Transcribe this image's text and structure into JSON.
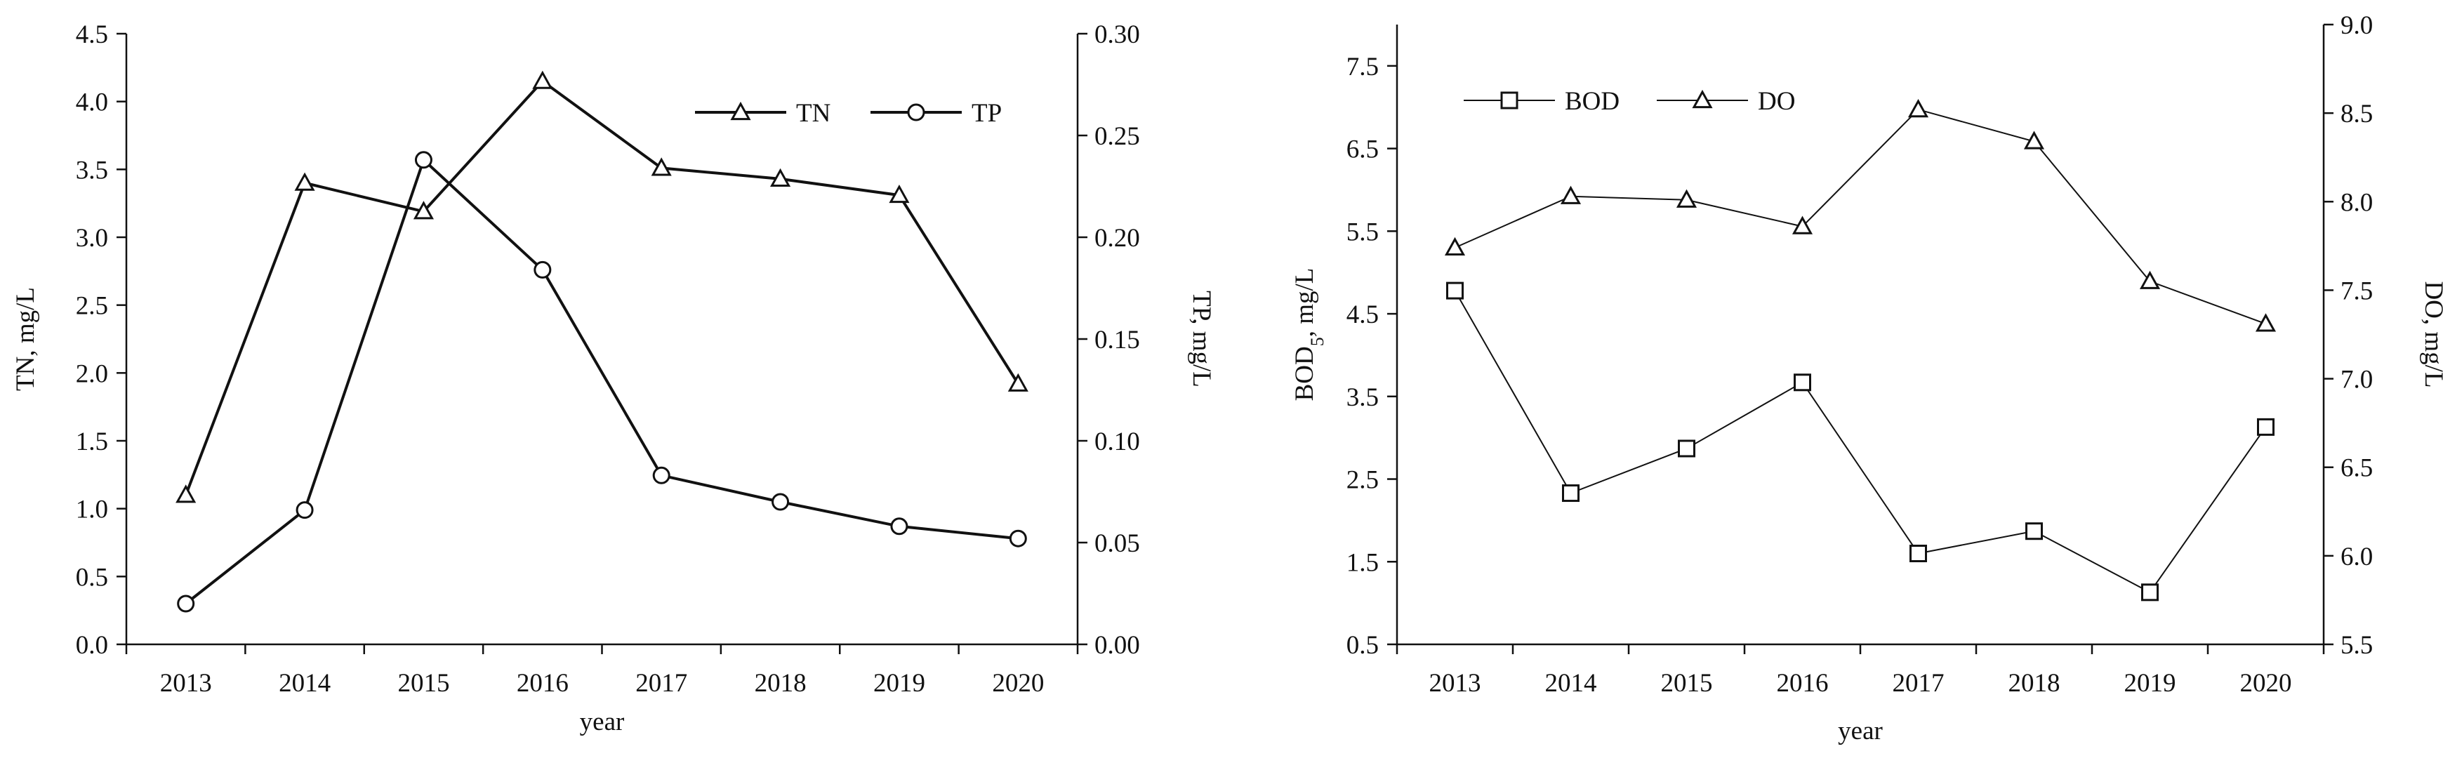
{
  "chart_data": [
    {
      "type": "line",
      "xlabel": "year",
      "categories": [
        "2013",
        "2014",
        "2015",
        "2016",
        "2017",
        "2018",
        "2019",
        "2020"
      ],
      "y_left": {
        "label": "TN, mg/L",
        "range": [
          0,
          4.5
        ],
        "ticks": [
          "0.0",
          "0.5",
          "1.0",
          "1.5",
          "2.0",
          "2.5",
          "3.0",
          "3.5",
          "4.0",
          "4.5"
        ]
      },
      "y_right": {
        "label": "TP, mg/L",
        "range": [
          0,
          0.3
        ],
        "ticks": [
          "0.00",
          "0.05",
          "0.10",
          "0.15",
          "0.20",
          "0.25",
          "0.30"
        ]
      },
      "legend_position": "top-right",
      "grid": false,
      "series": [
        {
          "name": "TN",
          "axis": "left",
          "marker": "triangle",
          "values": [
            1.1,
            3.4,
            3.19,
            4.15,
            3.51,
            3.43,
            3.31,
            1.92
          ]
        },
        {
          "name": "TP",
          "axis": "right",
          "marker": "circle",
          "values": [
            0.02,
            0.066,
            0.238,
            0.184,
            0.083,
            0.07,
            0.058,
            0.052
          ]
        }
      ]
    },
    {
      "type": "line",
      "xlabel": "year",
      "categories": [
        "2013",
        "2014",
        "2015",
        "2016",
        "2017",
        "2018",
        "2019",
        "2020"
      ],
      "y_left": {
        "label_main": "BOD",
        "label_sub": "5",
        "label_rest": ", mg/L",
        "range": [
          0.5,
          8.0
        ],
        "ticks": [
          "0.5",
          "1.5",
          "2.5",
          "3.5",
          "4.5",
          "5.5",
          "6.5",
          "7.5"
        ],
        "tick_values": [
          0.5,
          1.5,
          2.5,
          3.5,
          4.5,
          5.5,
          6.5,
          7.5
        ]
      },
      "y_right": {
        "label": "DO, mg/L",
        "range": [
          5.5,
          9.0
        ],
        "ticks": [
          "5.5",
          "6.0",
          "6.5",
          "7.0",
          "7.5",
          "8.0",
          "8.5",
          "9.0"
        ]
      },
      "legend_position": "top-left",
      "grid": false,
      "series": [
        {
          "name": "BOD",
          "axis": "left",
          "marker": "square",
          "values": [
            4.78,
            2.33,
            2.87,
            3.67,
            1.6,
            1.87,
            1.13,
            3.13
          ]
        },
        {
          "name": "DO",
          "axis": "right",
          "marker": "triangle",
          "values": [
            7.74,
            8.03,
            8.01,
            7.86,
            8.52,
            8.34,
            7.55,
            7.31
          ]
        }
      ]
    }
  ]
}
